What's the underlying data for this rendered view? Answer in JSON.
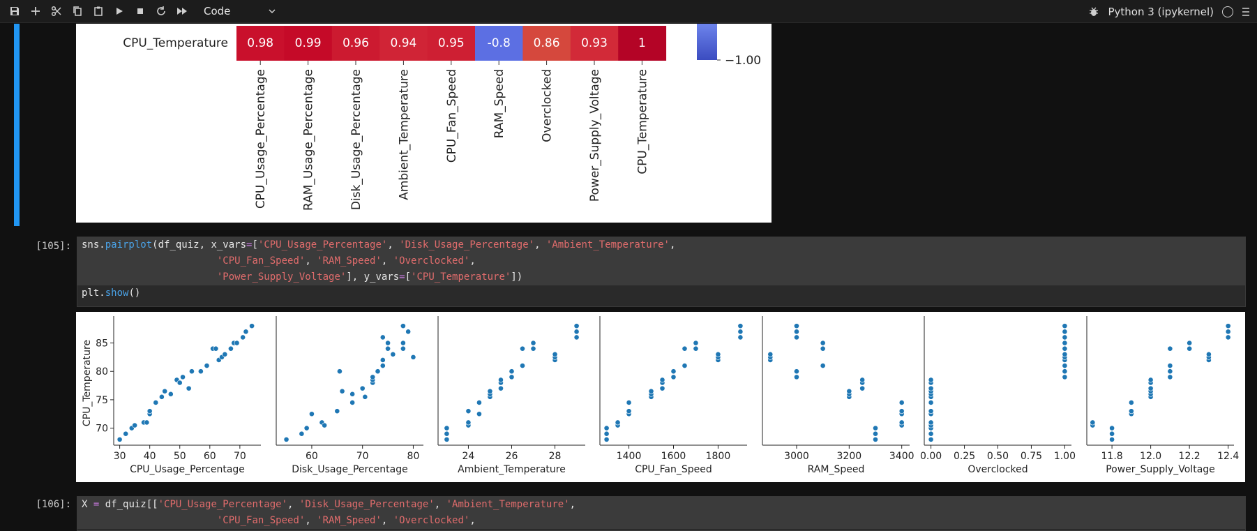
{
  "toolbar": {
    "icons": [
      "save-icon",
      "plus-icon",
      "scissors-icon",
      "copy-icon",
      "paste-icon",
      "run-icon",
      "stop-icon",
      "restart-icon",
      "fast-forward-icon"
    ],
    "cell_type": "Code",
    "kernel_name": "Python 3 (ipykernel)"
  },
  "heatmap": {
    "row_label": "CPU_Temperature",
    "values": [
      "0.98",
      "0.99",
      "0.96",
      "0.94",
      "0.95",
      "-0.8",
      "0.86",
      "0.93",
      "1"
    ],
    "colors": [
      "#c9102c",
      "#c50a28",
      "#cc1a30",
      "#d02436",
      "#ce1f33",
      "#5c6fe3",
      "#d5483d",
      "#d22a38",
      "#b40426"
    ],
    "col_labels": [
      "CPU_Usage_Percentage",
      "RAM_Usage_Percentage",
      "Disk_Usage_Percentage",
      "Ambient_Temperature",
      "CPU_Fan_Speed",
      "RAM_Speed",
      "Overclocked",
      "Power_Supply_Voltage",
      "CPU_Temperature"
    ],
    "colorbar_tick": "−1.00"
  },
  "cell105": {
    "prompt": "[105]:",
    "lines": [
      [
        {
          "t": "sns.",
          "c": ""
        },
        {
          "t": "pairplot",
          "c": "fn"
        },
        {
          "t": "(df_quiz, x_vars",
          "c": ""
        },
        {
          "t": "=",
          "c": "op"
        },
        {
          "t": "[",
          "c": ""
        },
        {
          "t": "'CPU_Usage_Percentage'",
          "c": "str"
        },
        {
          "t": ", ",
          "c": ""
        },
        {
          "t": "'Disk_Usage_Percentage'",
          "c": "str"
        },
        {
          "t": ", ",
          "c": ""
        },
        {
          "t": "'Ambient_Temperature'",
          "c": "str"
        },
        {
          "t": ",",
          "c": ""
        }
      ],
      [
        {
          "t": "                       ",
          "c": ""
        },
        {
          "t": "'CPU_Fan_Speed'",
          "c": "str"
        },
        {
          "t": ", ",
          "c": ""
        },
        {
          "t": "'RAM_Speed'",
          "c": "str"
        },
        {
          "t": ", ",
          "c": ""
        },
        {
          "t": "'Overclocked'",
          "c": "str"
        },
        {
          "t": ",",
          "c": ""
        }
      ],
      [
        {
          "t": "                       ",
          "c": ""
        },
        {
          "t": "'Power_Supply_Voltage'",
          "c": "str"
        },
        {
          "t": "], y_vars",
          "c": ""
        },
        {
          "t": "=",
          "c": "op"
        },
        {
          "t": "[",
          "c": ""
        },
        {
          "t": "'CPU_Temperature'",
          "c": "str"
        },
        {
          "t": "])",
          "c": ""
        }
      ],
      [
        {
          "t": "plt.",
          "c": ""
        },
        {
          "t": "show",
          "c": "fn"
        },
        {
          "t": "()",
          "c": ""
        }
      ]
    ]
  },
  "cell106": {
    "prompt": "[106]:",
    "lines": [
      [
        {
          "t": "X ",
          "c": ""
        },
        {
          "t": "=",
          "c": "op"
        },
        {
          "t": " df_quiz[[",
          "c": ""
        },
        {
          "t": "'CPU_Usage_Percentage'",
          "c": "str"
        },
        {
          "t": ", ",
          "c": ""
        },
        {
          "t": "'Disk_Usage_Percentage'",
          "c": "str"
        },
        {
          "t": ", ",
          "c": ""
        },
        {
          "t": "'Ambient_Temperature'",
          "c": "str"
        },
        {
          "t": ",",
          "c": ""
        }
      ],
      [
        {
          "t": "                       ",
          "c": ""
        },
        {
          "t": "'CPU_Fan_Speed'",
          "c": "str"
        },
        {
          "t": ", ",
          "c": ""
        },
        {
          "t": "'RAM_Speed'",
          "c": "str"
        },
        {
          "t": ", ",
          "c": ""
        },
        {
          "t": "'Overclocked'",
          "c": "str"
        },
        {
          "t": ",",
          "c": ""
        }
      ]
    ]
  },
  "chart_data": [
    {
      "type": "heatmap",
      "rows": [
        "CPU_Temperature"
      ],
      "columns": [
        "CPU_Usage_Percentage",
        "RAM_Usage_Percentage",
        "Disk_Usage_Percentage",
        "Ambient_Temperature",
        "CPU_Fan_Speed",
        "RAM_Speed",
        "Overclocked",
        "Power_Supply_Voltage",
        "CPU_Temperature"
      ],
      "values": [
        [
          0.98,
          0.99,
          0.96,
          0.94,
          0.95,
          -0.8,
          0.86,
          0.93,
          1
        ]
      ],
      "colorbar_range": [
        -1,
        1
      ]
    },
    {
      "type": "scatter",
      "ylabel": "CPU_Temperature",
      "ylim": [
        67,
        89
      ],
      "yticks": [
        70,
        75,
        80,
        85
      ],
      "point_color": "#1f77b4",
      "panels": [
        {
          "xlabel": "CPU_Usage_Percentage",
          "xlim": [
            28,
            77
          ],
          "xticks": [
            "30",
            "40",
            "50",
            "60",
            "70"
          ],
          "points": [
            [
              30,
              68
            ],
            [
              32,
              69
            ],
            [
              34,
              70
            ],
            [
              35,
              70.5
            ],
            [
              38,
              71
            ],
            [
              39,
              71
            ],
            [
              40,
              72.5
            ],
            [
              40,
              73
            ],
            [
              42,
              74.5
            ],
            [
              44,
              75.5
            ],
            [
              45,
              76.5
            ],
            [
              47,
              76
            ],
            [
              49,
              78.5
            ],
            [
              50,
              78
            ],
            [
              51,
              79
            ],
            [
              53,
              77
            ],
            [
              54,
              80
            ],
            [
              57,
              80
            ],
            [
              59,
              81
            ],
            [
              61,
              84
            ],
            [
              62,
              84
            ],
            [
              63,
              82
            ],
            [
              64,
              82.5
            ],
            [
              65,
              83
            ],
            [
              67,
              84
            ],
            [
              68,
              85
            ],
            [
              69,
              85
            ],
            [
              71,
              86
            ],
            [
              72,
              87
            ],
            [
              74,
              88
            ]
          ]
        },
        {
          "xlabel": "Disk_Usage_Percentage",
          "xlim": [
            53,
            82
          ],
          "xticks": [
            "60",
            "70",
            "80"
          ],
          "points": [
            [
              55,
              68
            ],
            [
              58,
              69
            ],
            [
              59,
              70
            ],
            [
              60,
              72.5
            ],
            [
              62,
              71
            ],
            [
              62.5,
              70.5
            ],
            [
              65,
              73
            ],
            [
              65.5,
              80
            ],
            [
              66,
              76.5
            ],
            [
              68,
              74.5
            ],
            [
              68,
              76
            ],
            [
              70,
              77
            ],
            [
              70.5,
              75.5
            ],
            [
              72,
              78
            ],
            [
              72,
              78.5
            ],
            [
              72,
              79
            ],
            [
              73,
              80
            ],
            [
              74,
              81
            ],
            [
              74,
              82
            ],
            [
              74,
              86
            ],
            [
              75,
              84
            ],
            [
              75,
              85
            ],
            [
              76,
              83
            ],
            [
              78,
              84
            ],
            [
              78,
              85
            ],
            [
              78,
              88
            ],
            [
              79,
              87
            ],
            [
              80,
              82.5
            ]
          ]
        },
        {
          "xlabel": "Ambient_Temperature",
          "xlim": [
            22.6,
            29.4
          ],
          "xticks": [
            "24",
            "26",
            "28"
          ],
          "points": [
            [
              23,
              68
            ],
            [
              23,
              69
            ],
            [
              23,
              70
            ],
            [
              24,
              70.5
            ],
            [
              24,
              71
            ],
            [
              24,
              73
            ],
            [
              24.5,
              72.5
            ],
            [
              24.5,
              74.5
            ],
            [
              25,
              75.5
            ],
            [
              25,
              76
            ],
            [
              25,
              76.5
            ],
            [
              25.5,
              77
            ],
            [
              25.5,
              78
            ],
            [
              25.5,
              78.5
            ],
            [
              26,
              79
            ],
            [
              26,
              80
            ],
            [
              26.5,
              81
            ],
            [
              26.5,
              84
            ],
            [
              27,
              84
            ],
            [
              27,
              85
            ],
            [
              28,
              82
            ],
            [
              28,
              82.5
            ],
            [
              28,
              83
            ],
            [
              29,
              86
            ],
            [
              29,
              87
            ],
            [
              29,
              88
            ]
          ]
        },
        {
          "xlabel": "CPU_Fan_Speed",
          "xlim": [
            1270,
            1930
          ],
          "xticks": [
            "1400",
            "1600",
            "1800"
          ],
          "points": [
            [
              1300,
              68
            ],
            [
              1300,
              69
            ],
            [
              1300,
              70
            ],
            [
              1350,
              70.5
            ],
            [
              1350,
              71
            ],
            [
              1400,
              72.5
            ],
            [
              1400,
              73
            ],
            [
              1400,
              74.5
            ],
            [
              1500,
              75.5
            ],
            [
              1500,
              76
            ],
            [
              1500,
              76.5
            ],
            [
              1550,
              77
            ],
            [
              1550,
              78
            ],
            [
              1550,
              78.5
            ],
            [
              1600,
              79
            ],
            [
              1600,
              80
            ],
            [
              1650,
              81
            ],
            [
              1650,
              84
            ],
            [
              1700,
              84
            ],
            [
              1700,
              85
            ],
            [
              1800,
              82
            ],
            [
              1800,
              82.5
            ],
            [
              1800,
              83
            ],
            [
              1900,
              86
            ],
            [
              1900,
              87
            ],
            [
              1900,
              88
            ]
          ]
        },
        {
          "xlabel": "RAM_Speed",
          "xlim": [
            2870,
            3430
          ],
          "xticks": [
            "3000",
            "3200",
            "3400"
          ],
          "points": [
            [
              2900,
              82
            ],
            [
              2900,
              82.5
            ],
            [
              2900,
              83
            ],
            [
              3000,
              79
            ],
            [
              3000,
              80
            ],
            [
              3000,
              86
            ],
            [
              3000,
              87
            ],
            [
              3000,
              88
            ],
            [
              3100,
              81
            ],
            [
              3100,
              84
            ],
            [
              3100,
              85
            ],
            [
              3200,
              75.5
            ],
            [
              3200,
              76
            ],
            [
              3200,
              76.5
            ],
            [
              3250,
              77
            ],
            [
              3250,
              78
            ],
            [
              3250,
              78.5
            ],
            [
              3300,
              68
            ],
            [
              3300,
              69
            ],
            [
              3300,
              70
            ],
            [
              3400,
              70.5
            ],
            [
              3400,
              71
            ],
            [
              3400,
              72.5
            ],
            [
              3400,
              73
            ],
            [
              3400,
              74.5
            ]
          ]
        },
        {
          "xlabel": "Overclocked",
          "xlim": [
            -0.05,
            1.05
          ],
          "xticks": [
            "0.00",
            "0.25",
            "0.50",
            "0.75",
            "1.00"
          ],
          "points": [
            [
              0,
              68
            ],
            [
              0,
              69
            ],
            [
              0,
              70
            ],
            [
              0,
              70.5
            ],
            [
              0,
              71
            ],
            [
              0,
              72.5
            ],
            [
              0,
              73
            ],
            [
              0,
              74.5
            ],
            [
              0,
              75.5
            ],
            [
              0,
              76
            ],
            [
              0,
              76.5
            ],
            [
              0,
              77
            ],
            [
              0,
              78
            ],
            [
              0,
              78.5
            ],
            [
              1,
              79
            ],
            [
              1,
              80
            ],
            [
              1,
              81
            ],
            [
              1,
              82
            ],
            [
              1,
              82.5
            ],
            [
              1,
              83
            ],
            [
              1,
              84
            ],
            [
              1,
              85
            ],
            [
              1,
              86
            ],
            [
              1,
              87
            ],
            [
              1,
              88
            ]
          ]
        },
        {
          "xlabel": "Power_Supply_Voltage",
          "xlim": [
            11.67,
            12.43
          ],
          "xticks": [
            "11.8",
            "12.0",
            "12.2",
            "12.4"
          ],
          "points": [
            [
              11.7,
              70.5
            ],
            [
              11.7,
              71
            ],
            [
              11.8,
              68
            ],
            [
              11.8,
              69
            ],
            [
              11.8,
              70
            ],
            [
              11.9,
              72.5
            ],
            [
              11.9,
              73
            ],
            [
              11.9,
              74.5
            ],
            [
              12.0,
              75.5
            ],
            [
              12.0,
              76
            ],
            [
              12.0,
              76.5
            ],
            [
              12.0,
              77
            ],
            [
              12.0,
              78
            ],
            [
              12.0,
              78.5
            ],
            [
              12.1,
              79
            ],
            [
              12.1,
              80
            ],
            [
              12.1,
              81
            ],
            [
              12.1,
              84
            ],
            [
              12.2,
              84
            ],
            [
              12.2,
              85
            ],
            [
              12.3,
              82
            ],
            [
              12.3,
              82.5
            ],
            [
              12.3,
              83
            ],
            [
              12.4,
              86
            ],
            [
              12.4,
              87
            ],
            [
              12.4,
              88
            ]
          ]
        }
      ]
    }
  ]
}
